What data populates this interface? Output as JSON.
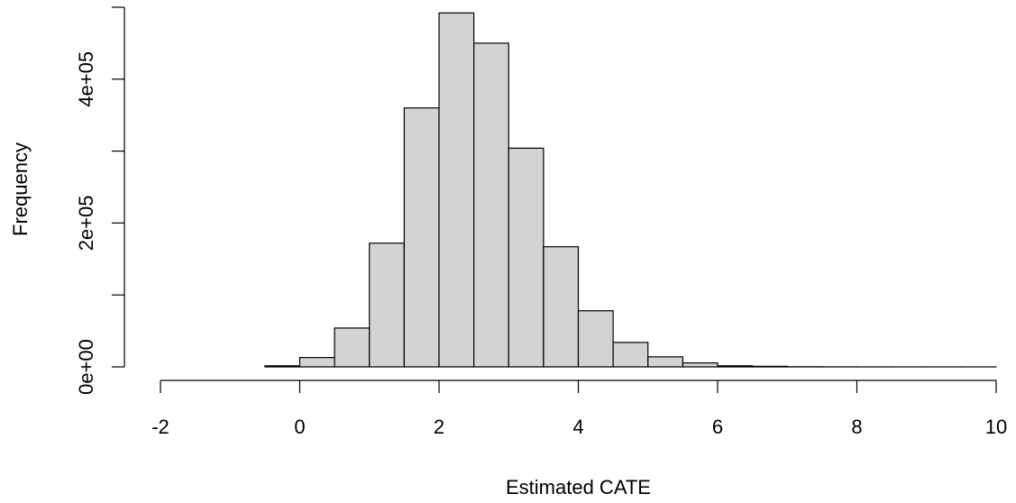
{
  "chart_data": {
    "type": "histogram",
    "title": "",
    "xlabel": "Estimated CATE",
    "ylabel": "Frequency",
    "xlim": [
      -2,
      10
    ],
    "ylim": [
      0,
      500000
    ],
    "x_ticks": [
      -2,
      0,
      2,
      4,
      6,
      8,
      10
    ],
    "x_tick_labels": [
      "-2",
      "0",
      "2",
      "4",
      "6",
      "8",
      "10"
    ],
    "y_ticks": [
      0,
      100000,
      200000,
      300000,
      400000,
      500000
    ],
    "y_tick_labels": [
      "0e+00",
      "",
      "2e+05",
      "",
      "4e+05",
      ""
    ],
    "bin_width": 0.5,
    "bins": [
      {
        "x0": -2.0,
        "x1": -1.5,
        "count": 0
      },
      {
        "x0": -1.5,
        "x1": -1.0,
        "count": 0
      },
      {
        "x0": -1.0,
        "x1": -0.5,
        "count": 0
      },
      {
        "x0": -0.5,
        "x1": 0.0,
        "count": 1500
      },
      {
        "x0": 0.0,
        "x1": 0.5,
        "count": 13000
      },
      {
        "x0": 0.5,
        "x1": 1.0,
        "count": 54000
      },
      {
        "x0": 1.0,
        "x1": 1.5,
        "count": 172000
      },
      {
        "x0": 1.5,
        "x1": 2.0,
        "count": 360000
      },
      {
        "x0": 2.0,
        "x1": 2.5,
        "count": 492000
      },
      {
        "x0": 2.5,
        "x1": 3.0,
        "count": 450000
      },
      {
        "x0": 3.0,
        "x1": 3.5,
        "count": 304000
      },
      {
        "x0": 3.5,
        "x1": 4.0,
        "count": 167000
      },
      {
        "x0": 4.0,
        "x1": 4.5,
        "count": 78000
      },
      {
        "x0": 4.5,
        "x1": 5.0,
        "count": 34000
      },
      {
        "x0": 5.0,
        "x1": 5.5,
        "count": 14000
      },
      {
        "x0": 5.5,
        "x1": 6.0,
        "count": 5500
      },
      {
        "x0": 6.0,
        "x1": 6.5,
        "count": 1500
      },
      {
        "x0": 6.5,
        "x1": 7.0,
        "count": 800
      },
      {
        "x0": 7.0,
        "x1": 7.5,
        "count": 200
      },
      {
        "x0": 7.5,
        "x1": 8.0,
        "count": 100
      },
      {
        "x0": 8.0,
        "x1": 8.5,
        "count": 50
      },
      {
        "x0": 8.5,
        "x1": 9.0,
        "count": 20
      },
      {
        "x0": 9.0,
        "x1": 9.5,
        "count": 10
      },
      {
        "x0": 9.5,
        "x1": 10.0,
        "count": 5
      }
    ],
    "bar_fill": "#d3d3d3",
    "bar_stroke": "#000000",
    "grid": false,
    "legend": "none"
  }
}
